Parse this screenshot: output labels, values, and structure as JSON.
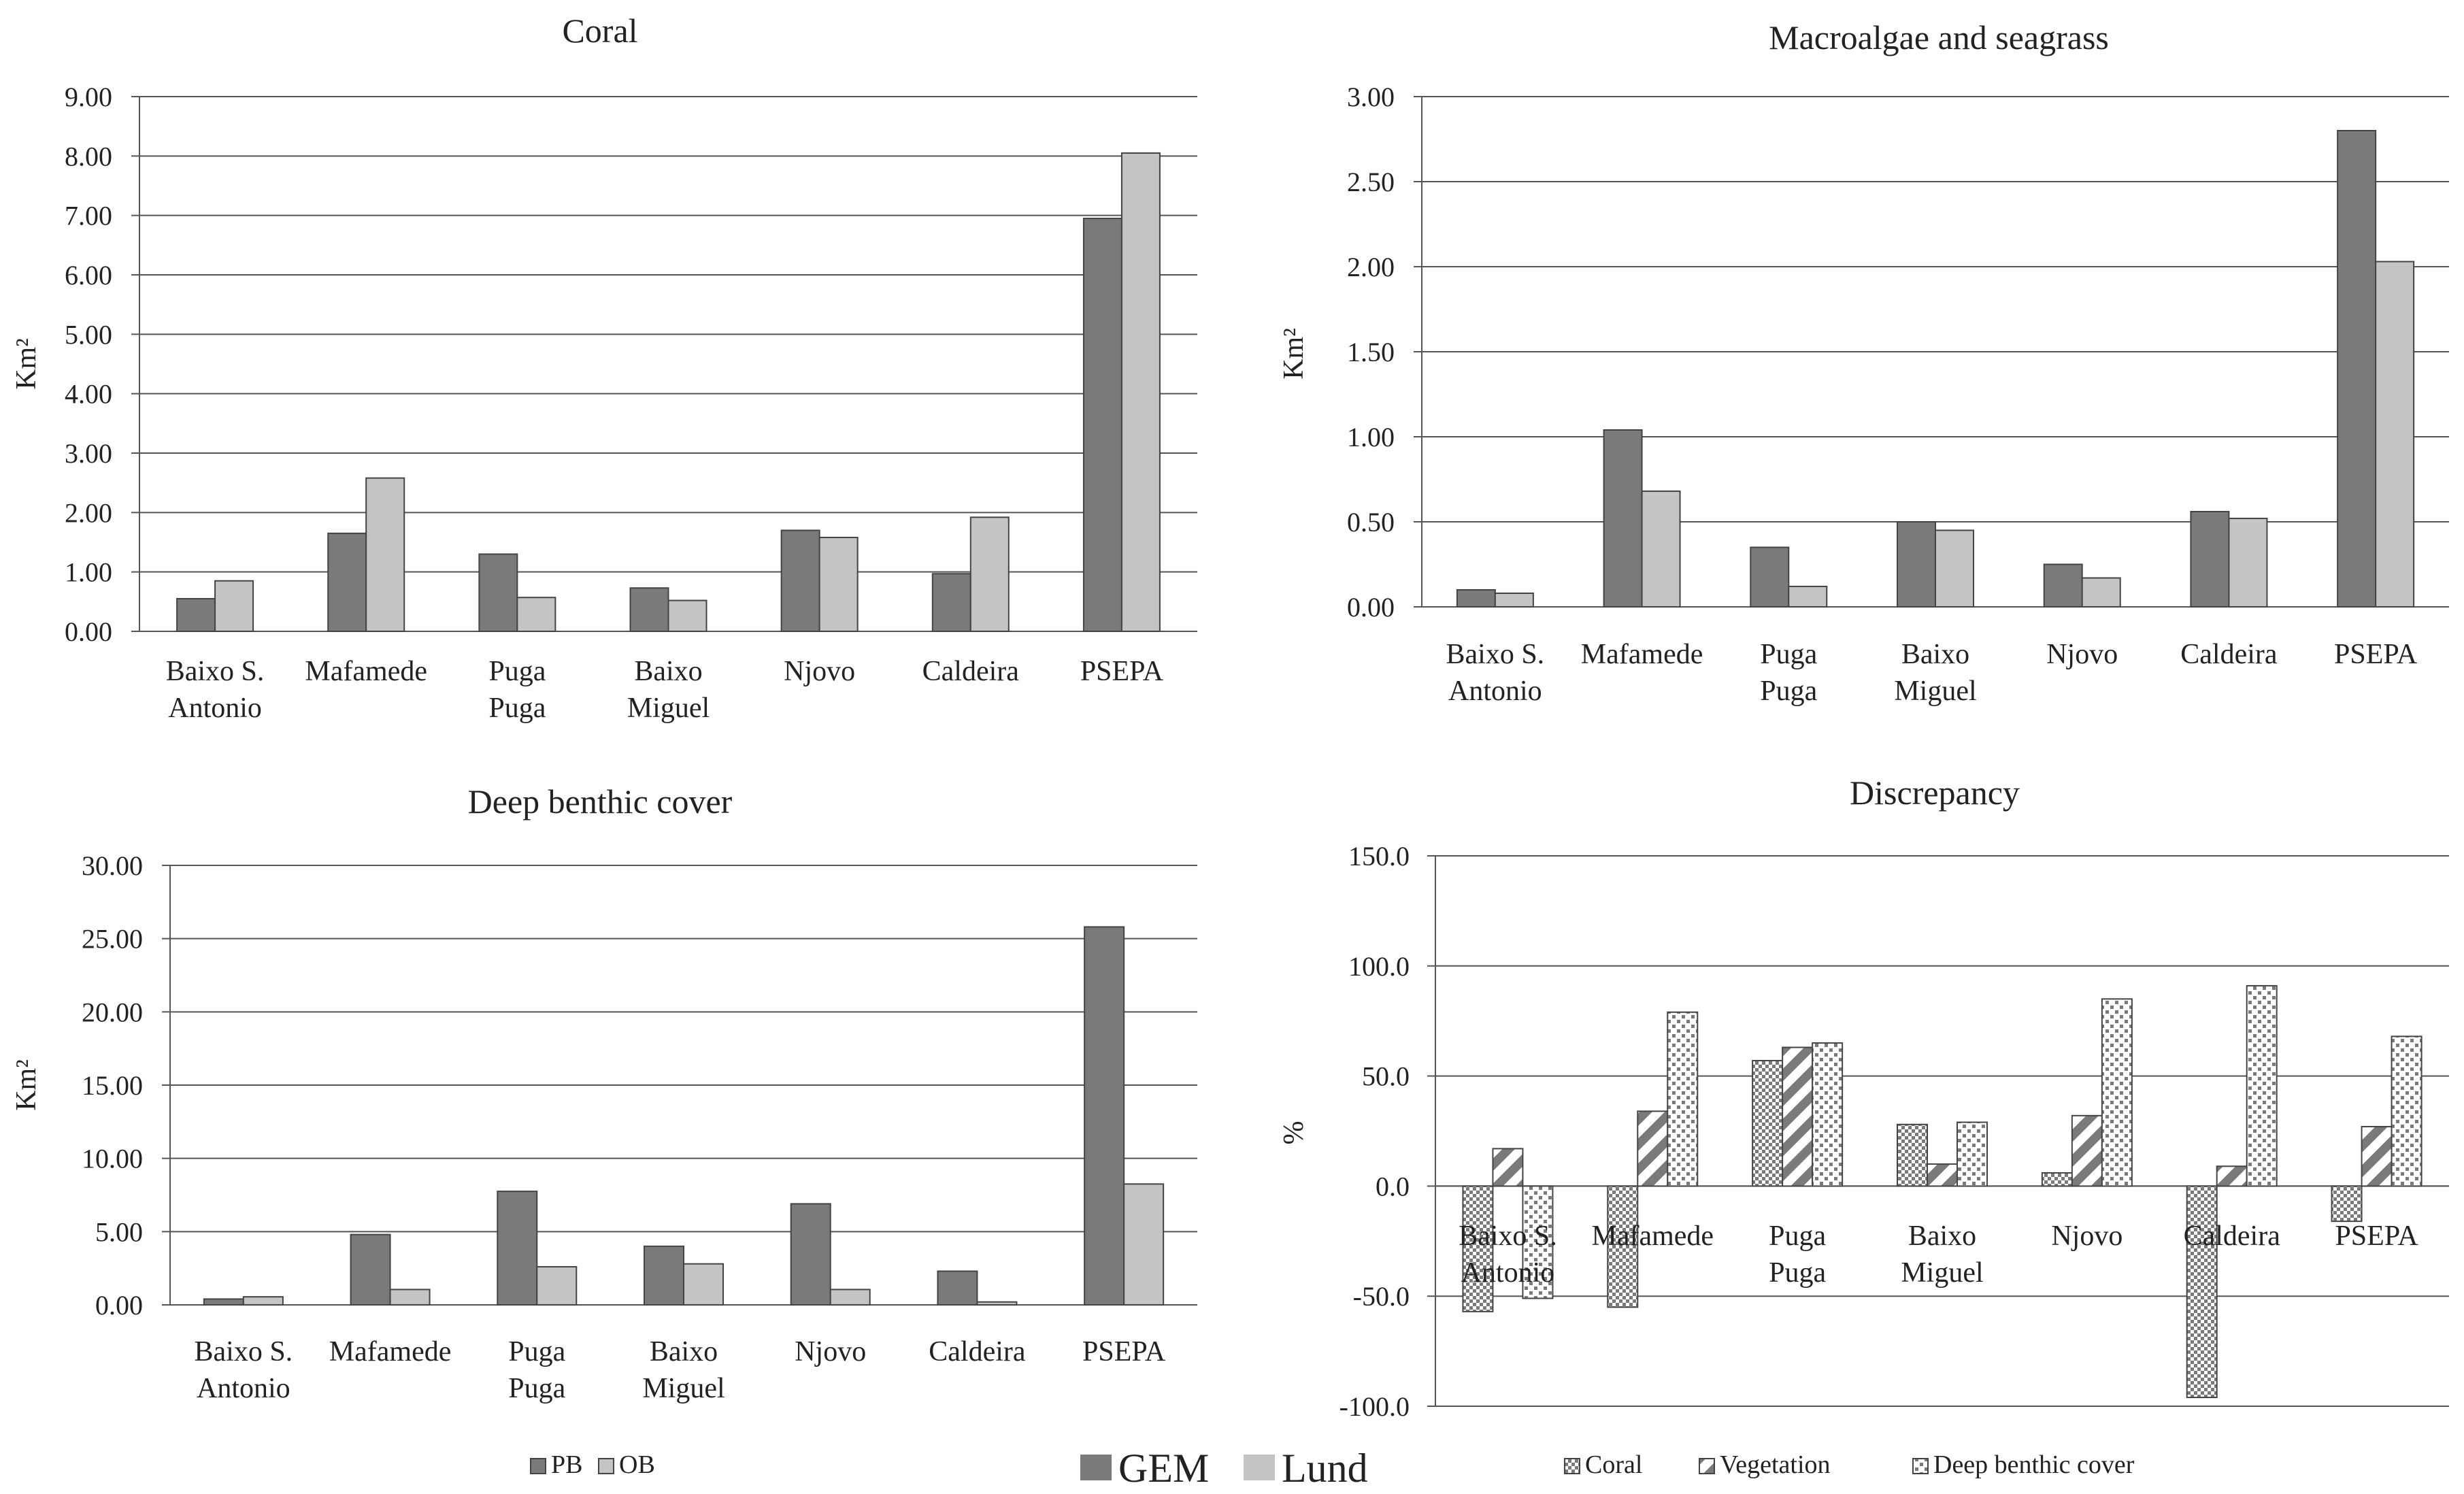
{
  "colors": {
    "pb": "#7a7a7a",
    "ob": "#c4c4c4",
    "axis": "#555555",
    "grid": "#555555",
    "hatch_fg": "#777777",
    "bar_stroke": "#444444"
  },
  "legends": {
    "pb_ob": {
      "items": [
        "PB",
        "OB"
      ]
    },
    "gem_lund": {
      "items": [
        "GEM",
        "Lund"
      ]
    },
    "discrepancy": {
      "items": [
        "Coral",
        "Vegetation",
        "Deep benthic cover"
      ]
    }
  },
  "chart_data": [
    {
      "id": "coral",
      "type": "bar",
      "title": "Coral",
      "ylabel": "Km²",
      "ylim": [
        0,
        9
      ],
      "yticks": [
        "0.00",
        "1.00",
        "2.00",
        "3.00",
        "4.00",
        "5.00",
        "6.00",
        "7.00",
        "8.00",
        "9.00"
      ],
      "grid": true,
      "categories": [
        [
          "Baixo S.",
          "Antonio"
        ],
        [
          "Mafamede"
        ],
        [
          "Puga",
          "Puga"
        ],
        [
          "Baixo",
          "Miguel"
        ],
        [
          "Njovo"
        ],
        [
          "Caldeira"
        ],
        [
          "PSEPA"
        ]
      ],
      "series": [
        {
          "name": "PB",
          "values": [
            0.55,
            1.65,
            1.3,
            0.73,
            1.7,
            0.97,
            6.95
          ]
        },
        {
          "name": "OB",
          "values": [
            0.85,
            2.58,
            0.57,
            0.52,
            1.58,
            1.92,
            8.05
          ]
        }
      ]
    },
    {
      "id": "macro",
      "type": "bar",
      "title": "Macroalgae and seagrass",
      "ylabel": "Km²",
      "ylim": [
        0,
        3
      ],
      "yticks": [
        "0.00",
        "0.50",
        "1.00",
        "1.50",
        "2.00",
        "2.50",
        "3.00"
      ],
      "grid": true,
      "categories": [
        [
          "Baixo S.",
          "Antonio"
        ],
        [
          "Mafamede"
        ],
        [
          "Puga",
          "Puga"
        ],
        [
          "Baixo",
          "Miguel"
        ],
        [
          "Njovo"
        ],
        [
          "Caldeira"
        ],
        [
          "PSEPA"
        ]
      ],
      "series": [
        {
          "name": "PB",
          "values": [
            0.1,
            1.04,
            0.35,
            0.5,
            0.25,
            0.56,
            2.8
          ]
        },
        {
          "name": "OB",
          "values": [
            0.08,
            0.68,
            0.12,
            0.45,
            0.17,
            0.52,
            2.03
          ]
        }
      ]
    },
    {
      "id": "deep",
      "type": "bar",
      "title": "Deep benthic cover",
      "ylabel": "Km²",
      "ylim": [
        0,
        30
      ],
      "yticks": [
        "0.00",
        "5.00",
        "10.00",
        "15.00",
        "20.00",
        "25.00",
        "30.00"
      ],
      "grid": true,
      "categories": [
        [
          "Baixo S.",
          "Antonio"
        ],
        [
          "Mafamede"
        ],
        [
          "Puga",
          "Puga"
        ],
        [
          "Baixo",
          "Miguel"
        ],
        [
          "Njovo"
        ],
        [
          "Caldeira"
        ],
        [
          "PSEPA"
        ]
      ],
      "series": [
        {
          "name": "PB",
          "values": [
            0.4,
            4.8,
            7.75,
            4.0,
            6.9,
            2.3,
            25.8
          ]
        },
        {
          "name": "OB",
          "values": [
            0.55,
            1.05,
            2.6,
            2.8,
            1.05,
            0.2,
            8.25
          ]
        }
      ]
    },
    {
      "id": "disc",
      "type": "bar",
      "title": "Discrepancy",
      "ylabel": "%",
      "ylim": [
        -100,
        150
      ],
      "yticks": [
        "-100.0",
        "-50.0",
        "0.0",
        "50.0",
        "100.0",
        "150.0"
      ],
      "grid": true,
      "categories": [
        [
          "Baixo S.",
          "Antonio"
        ],
        [
          "Mafamede"
        ],
        [
          "Puga",
          "Puga"
        ],
        [
          "Baixo",
          "Miguel"
        ],
        [
          "Njovo"
        ],
        [
          "Caldeira"
        ],
        [
          "PSEPA"
        ]
      ],
      "series": [
        {
          "name": "Coral",
          "values": [
            -57,
            -55,
            57,
            28,
            6,
            -96,
            -16
          ]
        },
        {
          "name": "Vegetation",
          "values": [
            17,
            34,
            63,
            10,
            32,
            9,
            27
          ]
        },
        {
          "name": "Deep benthic cover",
          "values": [
            -51,
            79,
            65,
            29,
            85,
            91,
            68
          ]
        }
      ]
    }
  ]
}
